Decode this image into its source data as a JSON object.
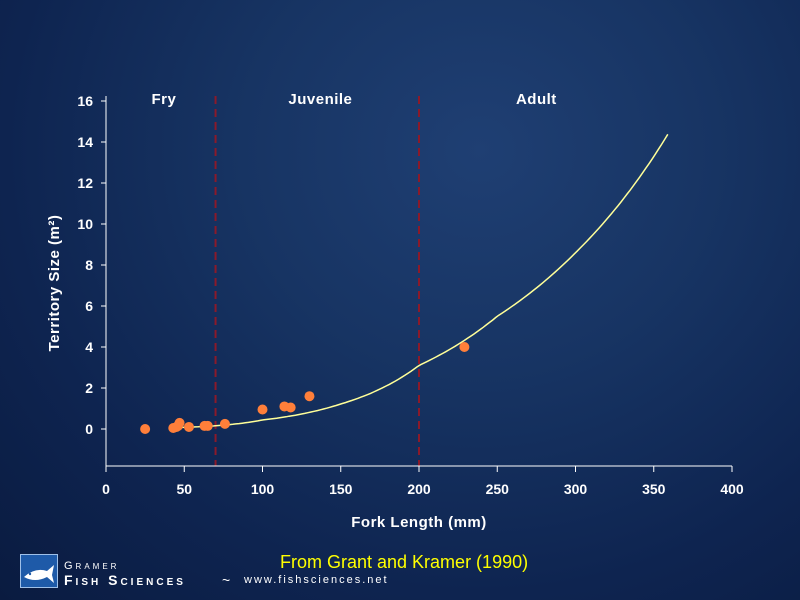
{
  "chart_data": {
    "type": "scatter",
    "title": "",
    "xlabel": "Fork Length (mm)",
    "ylabel": "Territory Size (m²)",
    "xlim": [
      0,
      400
    ],
    "ylim": [
      -2,
      16
    ],
    "xticks": [
      0,
      50,
      100,
      150,
      200,
      250,
      300,
      350,
      400
    ],
    "yticks": [
      0,
      2,
      4,
      6,
      8,
      10,
      12,
      14,
      16
    ],
    "grid": false,
    "points": [
      {
        "x": 25,
        "y": 0.0
      },
      {
        "x": 43,
        "y": 0.05
      },
      {
        "x": 45,
        "y": 0.1
      },
      {
        "x": 46,
        "y": 0.15
      },
      {
        "x": 47,
        "y": 0.3
      },
      {
        "x": 53,
        "y": 0.1
      },
      {
        "x": 63,
        "y": 0.15
      },
      {
        "x": 65,
        "y": 0.15
      },
      {
        "x": 76,
        "y": 0.25
      },
      {
        "x": 100,
        "y": 0.95
      },
      {
        "x": 114,
        "y": 1.1
      },
      {
        "x": 118,
        "y": 1.05
      },
      {
        "x": 130,
        "y": 1.6
      },
      {
        "x": 229,
        "y": 4.0
      }
    ],
    "fit_curve": {
      "type": "power",
      "x_range": [
        45,
        360
      ],
      "samples": [
        {
          "x": 50,
          "y": 0.08
        },
        {
          "x": 100,
          "y": 0.44
        },
        {
          "x": 150,
          "y": 1.22
        },
        {
          "x": 200,
          "y": 3.1
        },
        {
          "x": 250,
          "y": 5.5
        },
        {
          "x": 300,
          "y": 8.6
        },
        {
          "x": 360,
          "y": 14.5
        }
      ]
    },
    "stage_boundaries": [
      70,
      200
    ],
    "stage_labels": [
      {
        "label": "Fry",
        "x": 37
      },
      {
        "label": "Juvenile",
        "x": 137
      },
      {
        "label": "Adult",
        "x": 275
      }
    ],
    "colors": {
      "points": "#ff7f3a",
      "curve": "#ffff99",
      "boundary": "#8b1a2a",
      "axes": "#ffffff"
    }
  },
  "footer": {
    "source_note": "From Grant and Kramer (1990)",
    "company_top": "Gramer",
    "company_main": "Fish Sciences",
    "separator": "~",
    "url": "www.fishsciences.net",
    "logo_icon": "fish-logo-icon"
  }
}
